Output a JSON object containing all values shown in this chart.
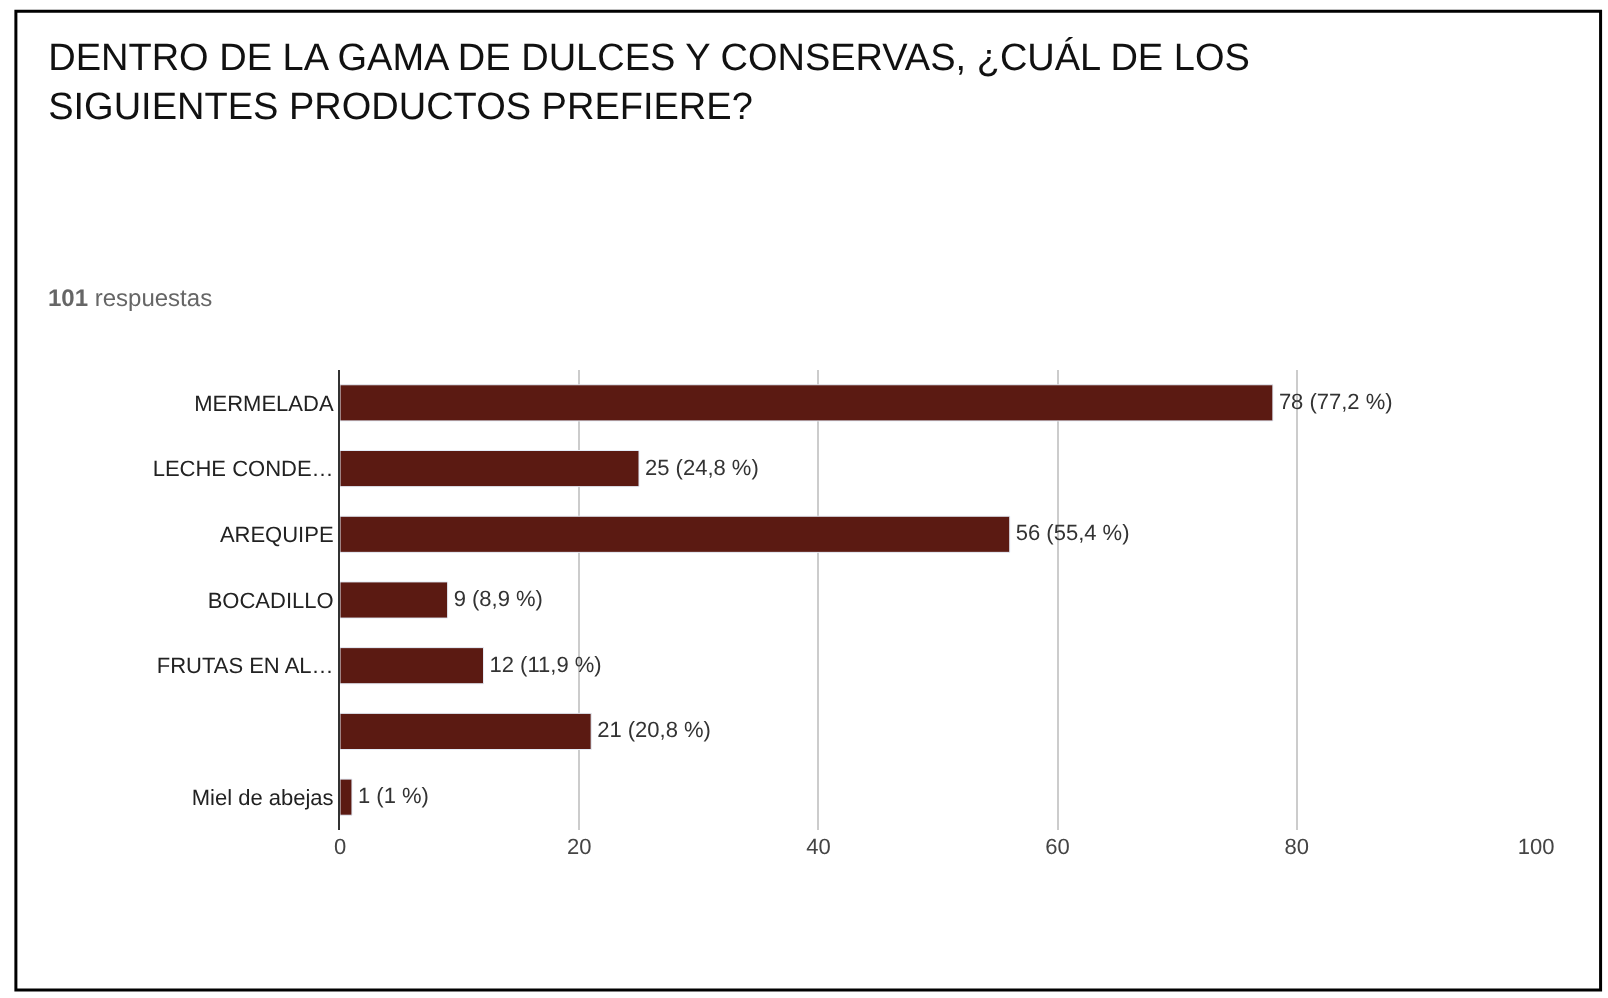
{
  "chart_data": {
    "type": "bar",
    "orientation": "horizontal",
    "title": "DENTRO DE LA GAMA DE DULCES Y CONSERVAS, ¿CUÁL DE LOS SIGUIENTES PRODUCTOS PREFIERE?",
    "subtitle": "101 respuestas",
    "categories": [
      "MERMELADA",
      "LECHE CONDE…",
      "AREQUIPE",
      "BOCADILLO",
      "FRUTAS EN AL…",
      null,
      "Miel de abejas"
    ],
    "values": [
      78,
      25,
      56,
      9,
      12,
      21,
      1
    ],
    "value_labels": [
      "78 (77,2 %)",
      "25 (24,8 %)",
      "56 (55,4 %)",
      "9 (8,9 %)",
      "12 (11,9 %)",
      "21 (20,8 %)",
      "1 (1 %)"
    ],
    "color": "#5b1a12",
    "xlim": [
      0,
      100
    ],
    "xticks": [
      0,
      20,
      40,
      60,
      80,
      100
    ],
    "grid": "x",
    "legend": false
  }
}
